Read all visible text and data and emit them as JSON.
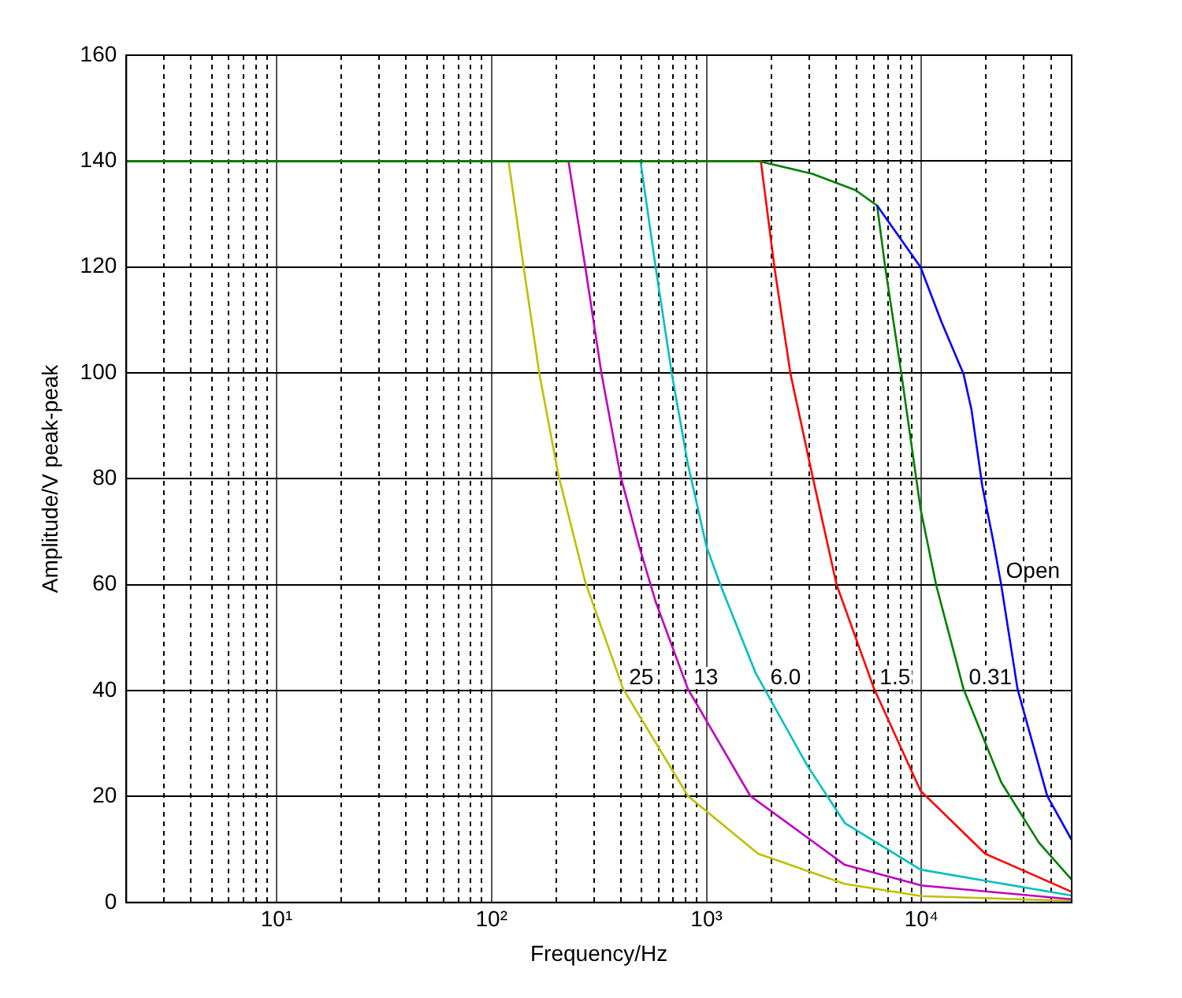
{
  "chart_data": {
    "type": "line",
    "xlabel": "Frequency/Hz",
    "ylabel": "Amplitude/V peak-peak",
    "log": "x",
    "grid": true,
    "marker": "none",
    "line_style": "solid",
    "xlim": [
      2,
      50000
    ],
    "ylim": [
      0,
      160
    ],
    "xticks": [
      {
        "value": 2,
        "label": null
      },
      {
        "value": 3,
        "label": null
      },
      {
        "value": 4,
        "label": null
      },
      {
        "value": 5,
        "label": null
      },
      {
        "value": 6,
        "label": null
      },
      {
        "value": 7,
        "label": null
      },
      {
        "value": 8,
        "label": null
      },
      {
        "value": 9,
        "label": null
      },
      {
        "value": 10,
        "label": "10¹"
      },
      {
        "value": 20,
        "label": null
      },
      {
        "value": 30,
        "label": null
      },
      {
        "value": 40,
        "label": null
      },
      {
        "value": 50,
        "label": null
      },
      {
        "value": 60,
        "label": null
      },
      {
        "value": 70,
        "label": null
      },
      {
        "value": 80,
        "label": null
      },
      {
        "value": 90,
        "label": null
      },
      {
        "value": 100,
        "label": "10²"
      },
      {
        "value": 200,
        "label": null
      },
      {
        "value": 300,
        "label": null
      },
      {
        "value": 400,
        "label": null
      },
      {
        "value": 500,
        "label": null
      },
      {
        "value": 600,
        "label": null
      },
      {
        "value": 700,
        "label": null
      },
      {
        "value": 800,
        "label": null
      },
      {
        "value": 900,
        "label": null
      },
      {
        "value": 1000,
        "label": "10³"
      },
      {
        "value": 2000,
        "label": null
      },
      {
        "value": 3000,
        "label": null
      },
      {
        "value": 4000,
        "label": null
      },
      {
        "value": 5000,
        "label": null
      },
      {
        "value": 6000,
        "label": null
      },
      {
        "value": 7000,
        "label": null
      },
      {
        "value": 8000,
        "label": null
      },
      {
        "value": 9000,
        "label": null
      },
      {
        "value": 10000,
        "label": "10⁴"
      },
      {
        "value": 20000,
        "label": null
      },
      {
        "value": 30000,
        "label": null
      },
      {
        "value": 40000,
        "label": null
      },
      {
        "value": 50000,
        "label": null
      }
    ],
    "yticks": [
      0,
      20,
      40,
      60,
      80,
      100,
      120,
      140,
      160
    ],
    "series": [
      {
        "name": "Open",
        "color": "#0000ff",
        "x": [
          6220,
          9900,
          12400,
          15700,
          17100,
          19200,
          21600,
          23500,
          28000,
          38500,
          50000
        ],
        "values": [
          131.6,
          120,
          109.6,
          99.8,
          93,
          78.6,
          68.2,
          60,
          40.3,
          20.1,
          11.8
        ]
      },
      {
        "name": "0.31",
        "color": "#007f00",
        "x": [
          2,
          1740,
          3110,
          4940,
          6220,
          6780,
          8070,
          9900,
          11700,
          15700,
          23500,
          35200,
          50000
        ],
        "values": [
          140,
          140,
          137.6,
          134.5,
          131.6,
          120,
          99.8,
          74.4,
          60,
          40.3,
          22.7,
          11.3,
          4.3
        ]
      },
      {
        "name": "1.5",
        "color": "#ff0000",
        "x": [
          2,
          1790,
          2070,
          2460,
          3110,
          4030,
          6030,
          9900,
          19800,
          50000
        ],
        "values": [
          140,
          140,
          120,
          99.8,
          80.6,
          60,
          40.3,
          21.1,
          9.2,
          2
        ]
      },
      {
        "name": "6.0",
        "color": "#00bfbf",
        "x": [
          2,
          493,
          580,
          690,
          820,
          1000,
          1160,
          1690,
          2930,
          4400,
          9900,
          50000
        ],
        "values": [
          140,
          140,
          120,
          99.8,
          82.7,
          67.2,
          60,
          43.4,
          26,
          15,
          6.2,
          1.3
        ]
      },
      {
        "name": "13",
        "color": "#bf00bf",
        "x": [
          2,
          228,
          273,
          325,
          398,
          487,
          580,
          820,
          1600,
          4400,
          10000,
          50000
        ],
        "values": [
          140,
          140,
          120,
          99.8,
          80.6,
          67.2,
          56.8,
          40.3,
          20.1,
          7.1,
          3.2,
          0.6
        ]
      },
      {
        "name": "25",
        "color": "#bfbf00",
        "x": [
          2,
          120,
          141,
          167,
          205,
          273,
          410,
          820,
          1740,
          4400,
          10000,
          50000
        ],
        "values": [
          140,
          140,
          120,
          99.8,
          80.6,
          60.5,
          40.3,
          20.1,
          9.2,
          3.5,
          1.2,
          0.3
        ]
      }
    ]
  }
}
